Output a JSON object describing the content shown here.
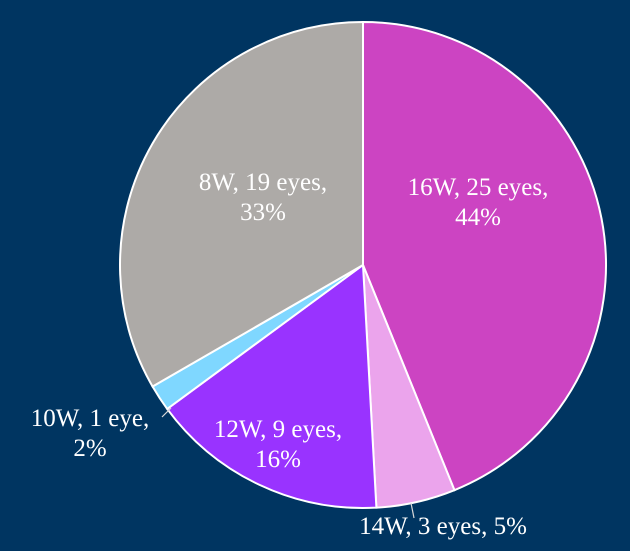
{
  "chart_data": {
    "type": "pie",
    "title": "",
    "start_angle_deg": 0,
    "direction": "clockwise",
    "slices": [
      {
        "label": "16W, 25 eyes, 44%",
        "lines": [
          "16W, 25 eyes,",
          "44%"
        ],
        "value": 25,
        "percent": 44,
        "color": "#cc44c2",
        "label_position": "inside"
      },
      {
        "label": "14W, 3 eyes, 5%",
        "lines": [
          "14W, 3 eyes, 5%"
        ],
        "value": 3,
        "percent": 5,
        "color": "#eba4ec",
        "label_position": "outside"
      },
      {
        "label": "12W, 9 eyes, 16%",
        "lines": [
          "12W, 9 eyes,",
          "16%"
        ],
        "value": 9,
        "percent": 16,
        "color": "#9933ff",
        "label_position": "inside"
      },
      {
        "label": "10W, 1 eye, 2%",
        "lines": [
          "10W, 1 eye,",
          "2%"
        ],
        "value": 1,
        "percent": 2,
        "color": "#7fd7ff",
        "label_position": "outside"
      },
      {
        "label": "8W, 19 eyes, 33%",
        "lines": [
          "8W, 19 eyes,",
          "33%"
        ],
        "value": 19,
        "percent": 33,
        "color": "#adaaa7",
        "label_position": "inside"
      }
    ]
  }
}
